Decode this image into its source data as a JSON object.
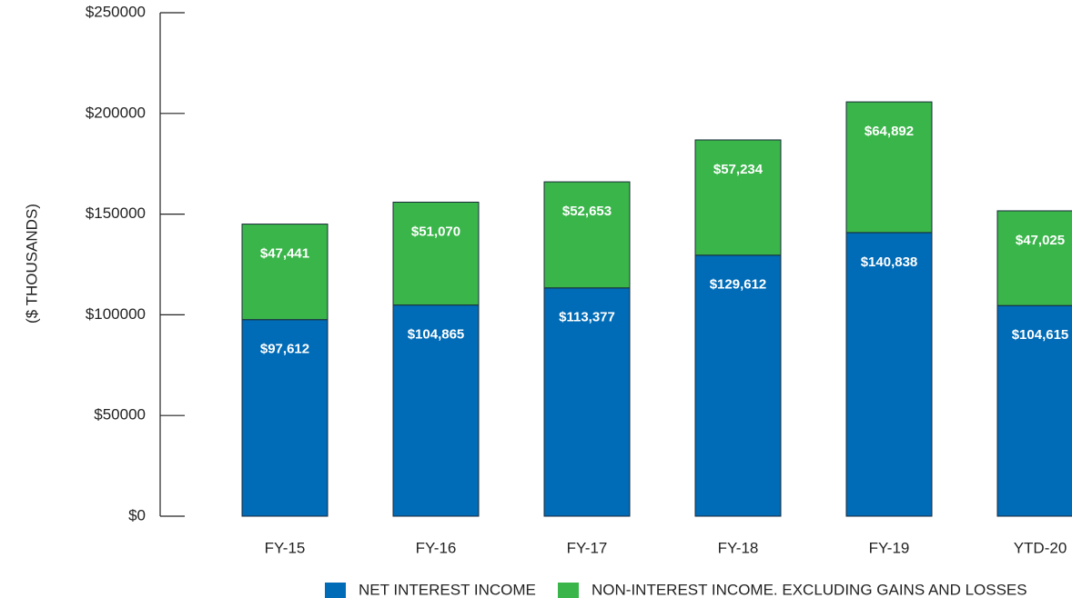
{
  "chart_data": {
    "type": "stacked_bar",
    "y_label": "($ THOUSANDS)",
    "categories": [
      "FY-15",
      "FY-16",
      "FY-17",
      "FY-18",
      "FY-19",
      "YTD-20"
    ],
    "series": [
      {
        "name": "NET INTEREST INCOME",
        "color": "#006bb6",
        "values": [
          97612,
          104865,
          113377,
          129612,
          140838,
          104615
        ],
        "value_labels": [
          "$97,612",
          "$104,865",
          "$113,377",
          "$129,612",
          "$140,838",
          "$104,615"
        ]
      },
      {
        "name": "NON-INTEREST INCOME. EXCLUDING GAINS AND LOSSES",
        "color": "#3ab54a",
        "values": [
          47441,
          51070,
          52653,
          57234,
          64892,
          47025
        ],
        "value_labels": [
          "$47,441",
          "$51,070",
          "$52,653",
          "$57,234",
          "$64,892",
          "$47,025"
        ]
      }
    ],
    "ylim": [
      0,
      250000
    ],
    "yticks": [
      {
        "value": 0,
        "label": "$0"
      },
      {
        "value": 50000,
        "label": "$50000"
      },
      {
        "value": 100000,
        "label": "$100000"
      },
      {
        "value": 150000,
        "label": "$150000"
      },
      {
        "value": 200000,
        "label": "$200000"
      },
      {
        "value": 250000,
        "label": "$250000"
      }
    ]
  }
}
